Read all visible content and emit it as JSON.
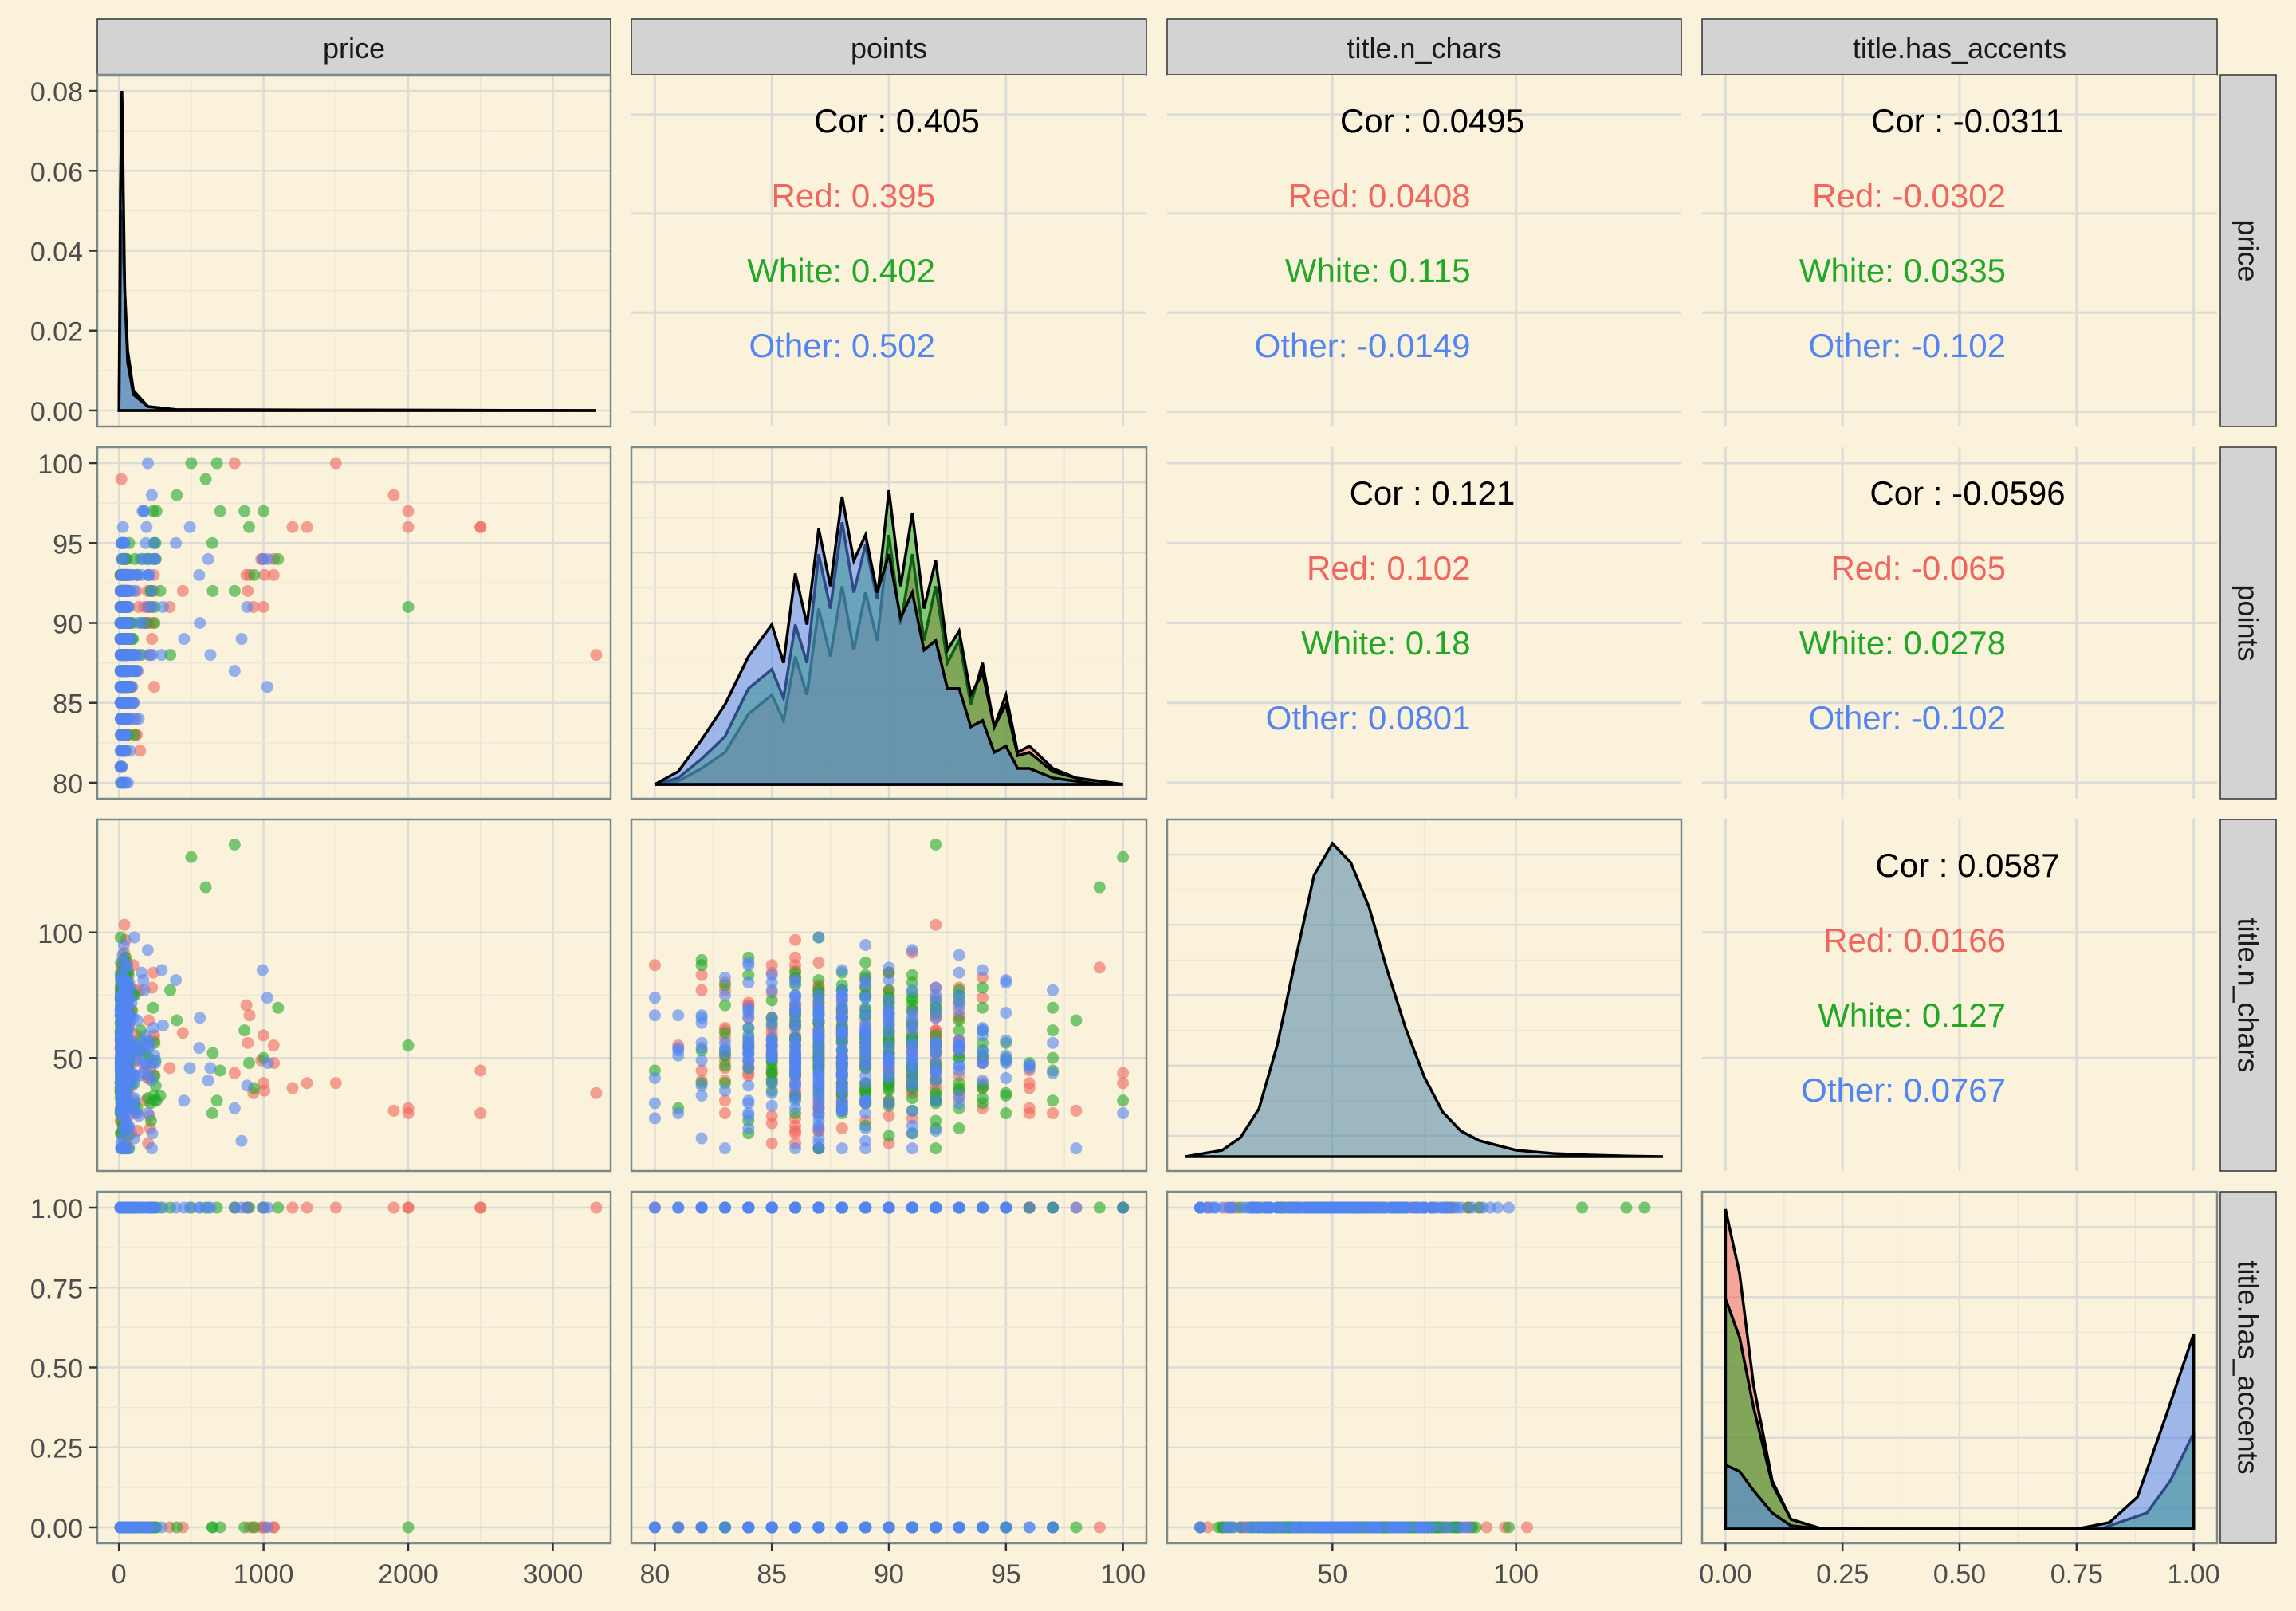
{
  "chart_data": {
    "type": "scatter-matrix",
    "title": "",
    "variables": [
      "price",
      "points",
      "title.n_chars",
      "title.has_accents"
    ],
    "groups": [
      {
        "name": "Red",
        "color": "#f0665e"
      },
      {
        "name": "White",
        "color": "#22a826"
      },
      {
        "name": "Other",
        "color": "#5385f2"
      }
    ],
    "cor_prefix": "Cor : ",
    "axes": [
      {
        "name": "price",
        "range": [
          -150,
          3400
        ],
        "ticks": [
          0,
          1000,
          2000,
          3000
        ],
        "tick_labels": [
          "0",
          "1000",
          "2000",
          "3000"
        ]
      },
      {
        "name": "points",
        "range": [
          79,
          101
        ],
        "ticks": [
          80,
          85,
          90,
          95,
          100
        ],
        "tick_labels": [
          "80",
          "85",
          "90",
          "95",
          "100"
        ]
      },
      {
        "name": "title.n_chars",
        "range": [
          5,
          145
        ],
        "ticks": [
          50,
          100
        ],
        "tick_labels": [
          "50",
          "100"
        ]
      },
      {
        "name": "title.has_accents",
        "range": [
          -0.05,
          1.05
        ],
        "ticks": [
          0,
          0.25,
          0.5,
          0.75,
          1.0
        ],
        "tick_labels": [
          "0.00",
          "0.25",
          "0.50",
          "0.75",
          "1.00"
        ]
      }
    ],
    "density_y_axis": {
      "range": [
        -0.004,
        0.084
      ],
      "ticks": [
        0,
        0.02,
        0.04,
        0.06,
        0.08
      ],
      "tick_labels": [
        "0.00",
        "0.02",
        "0.04",
        "0.06",
        "0.08"
      ]
    },
    "correlations": [
      {
        "row": 0,
        "col": 1,
        "overall": "0.405",
        "groups": [
          "0.395",
          "0.402",
          "0.502"
        ]
      },
      {
        "row": 0,
        "col": 2,
        "overall": "0.0495",
        "groups": [
          "0.0408",
          "0.115",
          "-0.0149"
        ]
      },
      {
        "row": 0,
        "col": 3,
        "overall": "-0.0311",
        "groups": [
          "-0.0302",
          "0.0335",
          "-0.102"
        ]
      },
      {
        "row": 1,
        "col": 2,
        "overall": "0.121",
        "groups": [
          "0.102",
          "0.18",
          "0.0801"
        ]
      },
      {
        "row": 1,
        "col": 3,
        "overall": "-0.0596",
        "groups": [
          "-0.065",
          "0.0278",
          "-0.102"
        ]
      },
      {
        "row": 2,
        "col": 3,
        "overall": "0.0587",
        "groups": [
          "0.0166",
          "0.127",
          "0.0767"
        ]
      }
    ],
    "densities": {
      "price": [
        {
          "group": "Other",
          "x": [
            0,
            10,
            20,
            30,
            40,
            60,
            100,
            200,
            400,
            3300
          ],
          "y": [
            0,
            0.03,
            0.05,
            0.042,
            0.03,
            0.015,
            0.005,
            0.001,
            0.0002,
            0
          ]
        },
        {
          "group": "All",
          "x": [
            0,
            10,
            20,
            25,
            30,
            40,
            60,
            100,
            200,
            400,
            3300
          ],
          "y": [
            0,
            0.055,
            0.08,
            0.072,
            0.055,
            0.03,
            0.012,
            0.004,
            0.001,
            0.0002,
            0
          ]
        }
      ],
      "points": [
        {
          "group": "Red",
          "x": [
            80,
            81,
            82,
            83,
            84,
            85,
            85.5,
            86,
            86.5,
            87,
            87.5,
            88,
            88.5,
            89,
            89.5,
            90,
            90.5,
            91,
            91.5,
            92,
            92.5,
            93,
            93.5,
            94,
            94.5,
            95,
            95.5,
            96,
            97,
            98,
            99,
            100
          ],
          "y": [
            0,
            0.01,
            0.05,
            0.1,
            0.22,
            0.28,
            0.2,
            0.4,
            0.28,
            0.55,
            0.4,
            0.62,
            0.42,
            0.6,
            0.45,
            0.78,
            0.5,
            0.72,
            0.45,
            0.62,
            0.38,
            0.45,
            0.25,
            0.38,
            0.18,
            0.28,
            0.1,
            0.12,
            0.05,
            0.02,
            0.01,
            0
          ]
        },
        {
          "group": "White",
          "x": [
            80,
            81,
            82,
            83,
            84,
            85,
            85.5,
            86,
            86.5,
            87,
            87.5,
            88,
            88.5,
            89,
            89.5,
            90,
            90.5,
            91,
            91.5,
            92,
            92.5,
            93,
            93.5,
            94,
            94.5,
            95,
            95.5,
            96,
            97,
            98,
            99,
            100
          ],
          "y": [
            0,
            0.02,
            0.08,
            0.15,
            0.3,
            0.36,
            0.27,
            0.5,
            0.38,
            0.72,
            0.55,
            0.82,
            0.6,
            0.75,
            0.58,
            0.92,
            0.62,
            0.85,
            0.55,
            0.7,
            0.42,
            0.48,
            0.28,
            0.35,
            0.18,
            0.25,
            0.09,
            0.1,
            0.04,
            0.02,
            0.01,
            0
          ]
        },
        {
          "group": "Other",
          "x": [
            80,
            81,
            82,
            83,
            84,
            85,
            85.5,
            86,
            86.5,
            87,
            87.5,
            88,
            88.5,
            89,
            89.5,
            90,
            90.5,
            91,
            91.5,
            92,
            92.5,
            93,
            93.5,
            94,
            94.5,
            95,
            95.5,
            96,
            97,
            98,
            99,
            100
          ],
          "y": [
            0,
            0.04,
            0.14,
            0.25,
            0.4,
            0.5,
            0.38,
            0.66,
            0.5,
            0.8,
            0.62,
            0.9,
            0.7,
            0.78,
            0.6,
            0.72,
            0.52,
            0.6,
            0.42,
            0.45,
            0.3,
            0.3,
            0.18,
            0.2,
            0.1,
            0.12,
            0.05,
            0.05,
            0.02,
            0.01,
            0,
            0
          ]
        }
      ],
      "title.n_chars": [
        {
          "group": "All",
          "x": [
            10,
            20,
            25,
            30,
            35,
            40,
            45,
            50,
            55,
            60,
            65,
            70,
            75,
            80,
            85,
            90,
            100,
            110,
            120,
            130,
            140
          ],
          "y": [
            0,
            0.02,
            0.06,
            0.15,
            0.35,
            0.62,
            0.88,
            0.98,
            0.92,
            0.78,
            0.58,
            0.4,
            0.25,
            0.14,
            0.08,
            0.05,
            0.02,
            0.01,
            0.005,
            0.002,
            0
          ]
        }
      ],
      "title.has_accents": [
        {
          "group": "Red",
          "x": [
            0,
            0.03,
            0.06,
            0.1,
            0.14,
            0.2,
            0.3,
            0.8,
            1.0
          ],
          "y": [
            1.0,
            0.8,
            0.45,
            0.15,
            0.03,
            0.003,
            0,
            0,
            0
          ]
        },
        {
          "group": "White",
          "x": [
            0,
            0.03,
            0.06,
            0.1,
            0.14,
            0.2,
            0.3,
            0.8,
            0.9,
            0.95,
            1.0
          ],
          "y": [
            0.72,
            0.6,
            0.38,
            0.14,
            0.03,
            0.003,
            0,
            0,
            0.05,
            0.15,
            0.3
          ]
        },
        {
          "group": "Other",
          "x": [
            0,
            0.03,
            0.06,
            0.1,
            0.14,
            0.2,
            0.3,
            0.75,
            0.82,
            0.88,
            0.94,
            1.0
          ],
          "y": [
            0.2,
            0.18,
            0.12,
            0.05,
            0.01,
            0.001,
            0,
            0,
            0.02,
            0.1,
            0.35,
            0.61
          ]
        }
      ]
    }
  }
}
